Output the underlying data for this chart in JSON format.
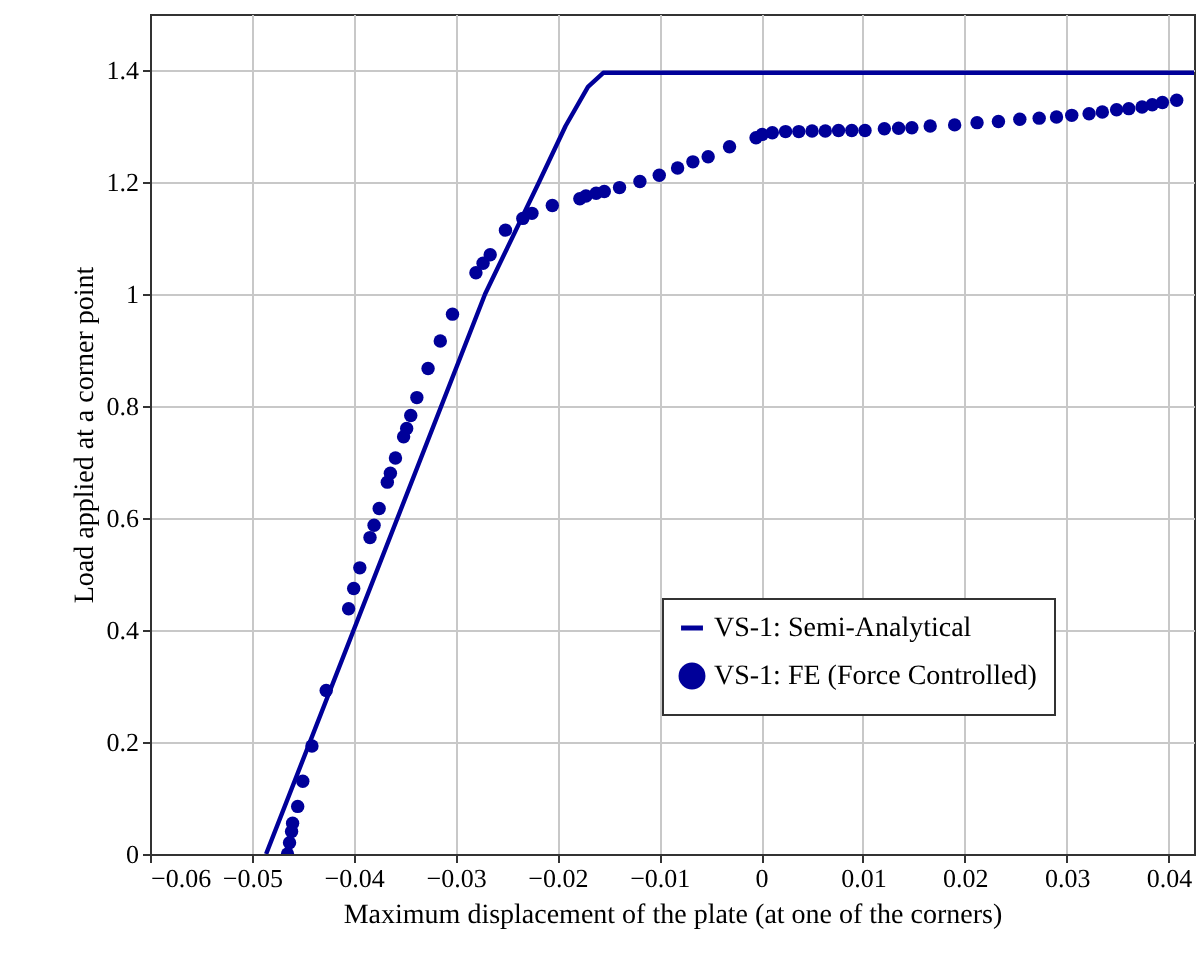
{
  "chart_data": {
    "type": "line",
    "xlabel": "Maximum displacement of the plate (at one of the corners)",
    "ylabel": "Load applied at a corner point",
    "xlim": [
      -0.06,
      0.0425
    ],
    "xticks": [
      -0.06,
      -0.05,
      -0.04,
      -0.03,
      -0.02,
      -0.01,
      0,
      0.01,
      0.02,
      0.03,
      0.04
    ],
    "ylim": [
      0,
      1.5
    ],
    "yticks": [
      0,
      0.2,
      0.4,
      0.6,
      0.8,
      1,
      1.2,
      1.4
    ],
    "grid": true,
    "legend": "bottom right",
    "series": [
      {
        "name": "VS-1: Semi-Analytical",
        "color": "#000099",
        "line_style": "solid",
        "x": [
          -0.0486,
          -0.0271,
          -0.0218,
          -0.0192,
          -0.017,
          -0.0155,
          0.0425
        ],
        "values": [
          0,
          1.0,
          1.2,
          1.3,
          1.37,
          1.395,
          1.395
        ]
      },
      {
        "name": "VS-1: FE (Force Controlled)",
        "type": "scatter",
        "color": "#000099",
        "marker": "circle",
        "x": [
          -0.0465,
          -0.0463,
          -0.0461,
          -0.046,
          -0.0455,
          -0.045,
          -0.0441,
          -0.0427,
          -0.0405,
          -0.04,
          -0.0394,
          -0.0384,
          -0.038,
          -0.0375,
          -0.0367,
          -0.0364,
          -0.0359,
          -0.0351,
          -0.0348,
          -0.0344,
          -0.0338,
          -0.0327,
          -0.0315,
          -0.0303,
          -0.028,
          -0.0273,
          -0.0266,
          -0.0251,
          -0.0234,
          -0.0225,
          -0.0205,
          -0.0178,
          -0.0172,
          -0.0162,
          -0.0154,
          -0.0139,
          -0.0119,
          -0.01,
          -0.0082,
          -0.0067,
          -0.0052,
          -0.0031,
          -0.0005,
          0.0001,
          0.0011,
          0.0024,
          0.0037,
          0.005,
          0.0063,
          0.0076,
          0.0089,
          0.0102,
          0.0121,
          0.0135,
          0.0148,
          0.0166,
          0.019,
          0.0212,
          0.0233,
          0.0254,
          0.0273,
          0.029,
          0.0305,
          0.0322,
          0.0335,
          0.0349,
          0.0361,
          0.0374,
          0.0384,
          0.0394,
          0.0408
        ],
        "values": [
          0,
          0.02,
          0.04,
          0.055,
          0.085,
          0.13,
          0.193,
          0.292,
          0.438,
          0.474,
          0.511,
          0.565,
          0.587,
          0.617,
          0.664,
          0.68,
          0.707,
          0.745,
          0.76,
          0.783,
          0.815,
          0.867,
          0.916,
          0.964,
          1.038,
          1.055,
          1.07,
          1.114,
          1.135,
          1.144,
          1.158,
          1.17,
          1.175,
          1.18,
          1.183,
          1.19,
          1.201,
          1.212,
          1.225,
          1.236,
          1.245,
          1.263,
          1.279,
          1.285,
          1.288,
          1.29,
          1.29,
          1.291,
          1.291,
          1.292,
          1.292,
          1.292,
          1.295,
          1.296,
          1.297,
          1.3,
          1.302,
          1.306,
          1.308,
          1.312,
          1.314,
          1.316,
          1.319,
          1.322,
          1.325,
          1.329,
          1.331,
          1.334,
          1.338,
          1.342,
          1.346
        ]
      }
    ]
  }
}
